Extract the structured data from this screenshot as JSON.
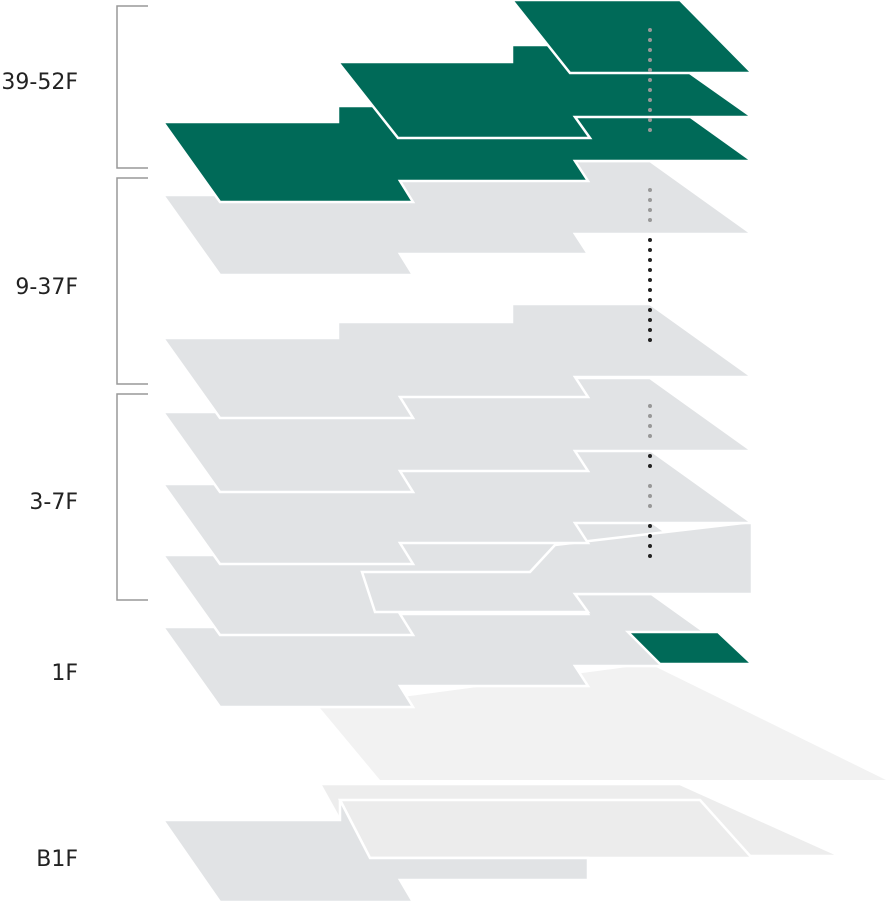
{
  "floors": [
    {
      "label": "39-52F"
    },
    {
      "label": "9-37F"
    },
    {
      "label": "3-7F"
    },
    {
      "label": "1F"
    },
    {
      "label": "B1F"
    }
  ]
}
